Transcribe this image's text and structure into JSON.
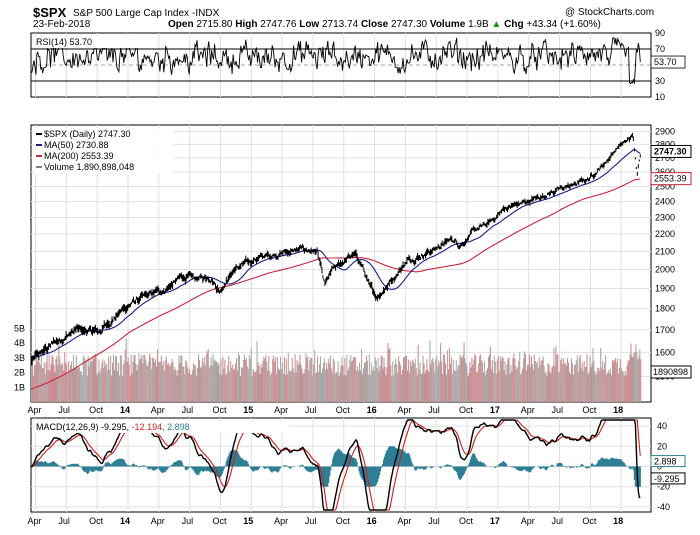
{
  "header": {
    "symbol": "$SPX",
    "name": "S&P 500 Large Cap Index",
    "exchange": "INDX",
    "date": "23-Feb-2018",
    "open_label": "Open",
    "open": "2715.80",
    "high_label": "High",
    "high": "2747.76",
    "low_label": "Low",
    "low": "2713.74",
    "close_label": "Close",
    "close": "2747.30",
    "volume_label": "Volume",
    "volume": "1.9B",
    "chg_label": "Chg",
    "chg": "+43.34 (+1.60%)",
    "chg_arrow": "▲",
    "copyright": "@ StockCharts.com"
  },
  "colors": {
    "price": "#000000",
    "ma50": "#1c1c8c",
    "ma200": "#c8253f",
    "volume_up": "#c98e91",
    "volume_down": "#a8a8a8",
    "macd_line": "#000000",
    "macd_signal": "#d11f1f",
    "macd_hist": "#2e7f96",
    "grid": "#e0e0e0"
  },
  "chart_data": [
    {
      "type": "line",
      "name": "RSI",
      "legend": "RSI(14) 53.70",
      "current_label": "53.70",
      "ylim": [
        10,
        90
      ],
      "y_ticks": [
        "90",
        "70",
        "50",
        "30",
        "10"
      ],
      "reference_lines": [
        70,
        30
      ]
    },
    {
      "type": "line",
      "name": "Price",
      "legend": [
        {
          "label": "$SPX (Daily) 2747.30",
          "color": "#000000"
        },
        {
          "label": "MA(50) 2730.88",
          "color": "#1c1c8c"
        },
        {
          "label": "MA(200) 2553.39",
          "color": "#c8253f"
        },
        {
          "label": "Volume 1,890,898,048",
          "color": "#808080"
        }
      ],
      "ylim": [
        1400,
        2950
      ],
      "y_ticks": [
        "2900",
        "2800",
        "2700",
        "2600",
        "2500",
        "2400",
        "2300",
        "2200",
        "2100",
        "2000",
        "1900",
        "1800",
        "1700",
        "1600",
        "1500"
      ],
      "price_tags": [
        "2747.30",
        "2553.39"
      ],
      "volume_tag": "1890898",
      "volume_ticks": [
        "5B",
        "4B",
        "3B",
        "2B",
        "1B"
      ],
      "volume_max": 5,
      "x_ticks": [
        "Apr",
        "Jul",
        "Oct",
        "14",
        "Apr",
        "Jul",
        "Oct",
        "15",
        "Apr",
        "Jul",
        "Oct",
        "16",
        "Apr",
        "Jul",
        "Oct",
        "17",
        "Apr",
        "Jul",
        "Oct",
        "18"
      ],
      "anchors": [
        [
          0,
          1560
        ],
        [
          3,
          1640
        ],
        [
          6,
          1700
        ],
        [
          9,
          1690
        ],
        [
          12,
          1790
        ],
        [
          14,
          1840
        ],
        [
          16,
          1870
        ],
        [
          18,
          1900
        ],
        [
          20,
          1960
        ],
        [
          22,
          1950
        ],
        [
          24,
          1960
        ],
        [
          25,
          1890
        ],
        [
          27,
          2000
        ],
        [
          30,
          2060
        ],
        [
          33,
          2090
        ],
        [
          36,
          2110
        ],
        [
          38,
          2100
        ],
        [
          39,
          1910
        ],
        [
          40,
          1990
        ],
        [
          42,
          2060
        ],
        [
          43,
          2080
        ],
        [
          44,
          2020
        ],
        [
          45,
          1900
        ],
        [
          46,
          1860
        ],
        [
          48,
          1950
        ],
        [
          50,
          2050
        ],
        [
          53,
          2100
        ],
        [
          56,
          2170
        ],
        [
          57,
          2140
        ],
        [
          59,
          2220
        ],
        [
          61,
          2270
        ],
        [
          63,
          2360
        ],
        [
          66,
          2400
        ],
        [
          69,
          2460
        ],
        [
          72,
          2510
        ],
        [
          74,
          2550
        ],
        [
          76,
          2650
        ],
        [
          78,
          2780
        ],
        [
          80,
          2860
        ],
        [
          80.5,
          2600
        ],
        [
          81,
          2740
        ]
      ],
      "ma50_current": 2730.88,
      "ma200_current": 2553.39,
      "ma200_start": 1450
    },
    {
      "type": "line",
      "name": "MACD",
      "legend": {
        "label": "MACD(12,26,9)",
        "macd": "-9.295",
        "signal": "-12.194",
        "hist": "2.898"
      },
      "ylim": [
        -45,
        48
      ],
      "y_ticks": [
        "40",
        "20",
        "0",
        "-20",
        "-40"
      ],
      "value_tags": [
        "2.898",
        "-9.295"
      ],
      "x_ticks": [
        "Apr",
        "Jul",
        "Oct",
        "14",
        "Apr",
        "Jul",
        "Oct",
        "15",
        "Apr",
        "Jul",
        "Oct",
        "16",
        "Apr",
        "Jul",
        "Oct",
        "17",
        "Apr",
        "Jul",
        "Oct",
        "18"
      ]
    }
  ]
}
